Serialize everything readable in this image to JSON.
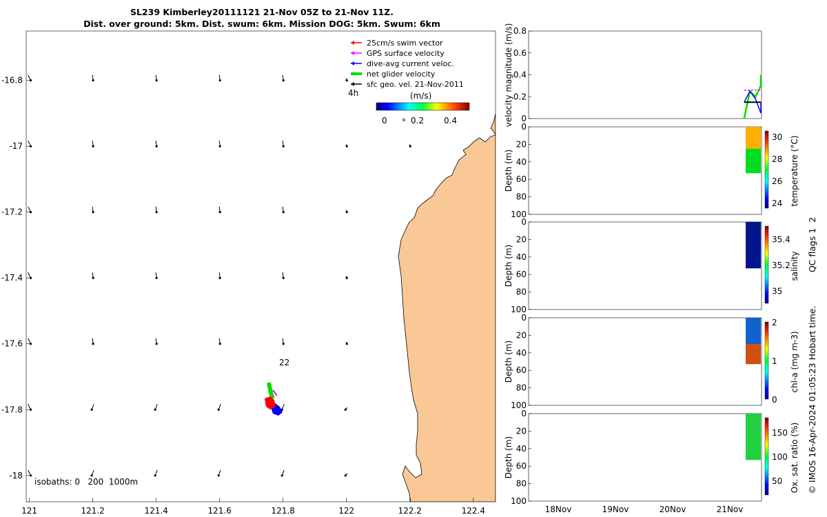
{
  "header": {
    "title_line1": "SL239 Kimberley20111121 21-Nov 05Z to 21-Nov 11Z.",
    "title_line2": "Dist. over ground: 5km. Dist. swum: 6km. Mission DOG: 5km. Swum: 6km"
  },
  "map": {
    "x_ticks": [
      "121",
      "121.2",
      "121.4",
      "121.6",
      "121.8",
      "122",
      "122.2",
      "122.4"
    ],
    "y_ticks": [
      "-16.8",
      "-17",
      "-17.2",
      "-17.4",
      "-17.6",
      "-17.8",
      "-18"
    ],
    "legend": [
      {
        "label": "25cm/s swim vector",
        "color": "#ff0000"
      },
      {
        "label": "GPS surface velocity",
        "color": "#ff00ff"
      },
      {
        "label": "dive-avg current veloc.",
        "color": "#0000ff"
      },
      {
        "label": "net glider velocity",
        "color": "#00dd00"
      },
      {
        "label": "sfc geo. vel. 21-Nov-2011",
        "color": "#000000"
      }
    ],
    "colorbar_title": "(m/s)",
    "colorbar_ticks": [
      "0",
      "0.2",
      "0.4"
    ],
    "label_4h": "4h",
    "label_22": "22",
    "isobaths": "isobaths: 0   200  1000m",
    "land_color": "#fac896"
  },
  "panels": {
    "velocity_ylabel": "velocity magnitude (m/s)",
    "velocity_yticks": [
      "0",
      "0.2",
      "0.4",
      "0.6",
      "0.8"
    ],
    "depth_ylabel": "Depth (m)",
    "depth_ticks": [
      "0",
      "20",
      "40",
      "60",
      "80",
      "100"
    ],
    "temp": {
      "label": "temperature (°C)",
      "ticks": [
        "30",
        "28",
        "26",
        "24"
      ]
    },
    "sal": {
      "label": "salinity",
      "ticks": [
        "35.4",
        "35.2",
        "35"
      ]
    },
    "chl": {
      "label": "chl-a (mg m-3)",
      "ticks": [
        "2",
        "1",
        "0"
      ]
    },
    "oxy": {
      "label": "Ox. sat. ratio (%)",
      "ticks": [
        "150",
        "100",
        "50"
      ]
    },
    "x_ticks": [
      "18Nov",
      "19Nov",
      "20Nov",
      "21Nov"
    ],
    "qc_label": "QC flags 1  2",
    "credit": "© IMOS 16-Apr-2024 01:05:23 Hobart time."
  },
  "chart_data": [
    {
      "type": "scatter",
      "title": "SL239 Kimberley20111121 21-Nov 05Z to 21-Nov 11Z.",
      "xlabel": "",
      "ylabel": "",
      "xlim": [
        120.99,
        122.47
      ],
      "ylim": [
        -18.08,
        -16.65
      ],
      "series": [
        {
          "name": "sfc geo. vel. 21-Nov-2011",
          "points": [
            [
              121.0,
              -16.8
            ],
            [
              121.2,
              -16.8
            ],
            [
              121.4,
              -16.8
            ],
            [
              121.6,
              -16.8
            ],
            [
              121.8,
              -16.8
            ],
            [
              122.0,
              -16.8
            ],
            [
              121.0,
              -17.0
            ],
            [
              121.2,
              -17.0
            ],
            [
              121.4,
              -17.0
            ],
            [
              121.6,
              -17.0
            ],
            [
              121.8,
              -17.0
            ],
            [
              122.0,
              -17.0
            ],
            [
              122.2,
              -17.0
            ],
            [
              121.0,
              -17.2
            ],
            [
              121.2,
              -17.2
            ],
            [
              121.4,
              -17.2
            ],
            [
              121.6,
              -17.2
            ],
            [
              121.8,
              -17.2
            ],
            [
              122.0,
              -17.2
            ],
            [
              121.0,
              -17.4
            ],
            [
              121.2,
              -17.4
            ],
            [
              121.4,
              -17.4
            ],
            [
              121.6,
              -17.4
            ],
            [
              121.8,
              -17.4
            ],
            [
              122.0,
              -17.4
            ],
            [
              121.0,
              -17.6
            ],
            [
              121.2,
              -17.6
            ],
            [
              121.4,
              -17.6
            ],
            [
              121.6,
              -17.6
            ],
            [
              121.8,
              -17.6
            ],
            [
              122.0,
              -17.6
            ],
            [
              121.0,
              -17.8
            ],
            [
              121.2,
              -17.8
            ],
            [
              121.4,
              -17.8
            ],
            [
              121.6,
              -17.8
            ],
            [
              121.8,
              -17.8
            ],
            [
              122.0,
              -17.8
            ],
            [
              121.0,
              -18.0
            ],
            [
              121.2,
              -18.0
            ],
            [
              121.4,
              -18.0
            ],
            [
              121.6,
              -18.0
            ],
            [
              121.8,
              -18.0
            ],
            [
              122.0,
              -18.0
            ]
          ]
        },
        {
          "name": "glider position",
          "points": [
            [
              121.78,
              -17.78
            ]
          ]
        }
      ]
    },
    {
      "type": "line",
      "title": "",
      "xlabel": "",
      "ylabel": "velocity magnitude (m/s)",
      "x": [
        "18Nov",
        "19Nov",
        "20Nov",
        "21Nov"
      ],
      "ylim": [
        0,
        0.8
      ],
      "series": [
        {
          "name": "net glider velocity",
          "x": [
            21.25,
            21.35,
            21.45,
            21.55,
            21.65,
            21.75
          ],
          "values": [
            0.0,
            0.25,
            0.2,
            0.3,
            0.35,
            0.4
          ]
        },
        {
          "name": "dive-avg current veloc.",
          "x": [
            21.25,
            21.35,
            21.45,
            21.55,
            21.65,
            21.75
          ],
          "values": [
            0.15,
            0.25,
            0.18,
            0.05,
            0.15,
            0.05
          ]
        },
        {
          "name": "GPS surface velocity",
          "x": [
            21.25,
            21.75
          ],
          "values": [
            0.26,
            0.26
          ]
        },
        {
          "name": "sfc geo. vel. 21-Nov-2011",
          "x": [
            21.25,
            21.75
          ],
          "values": [
            0.15,
            0.15
          ]
        }
      ]
    },
    {
      "type": "heatmap",
      "ylabel": "Depth (m)",
      "ylim": [
        100,
        0
      ],
      "colorbar": {
        "label": "temperature (°C)",
        "range": [
          23.5,
          30.5
        ]
      },
      "profiles": [
        {
          "depth": [
            0,
            25
          ],
          "value": 29.5
        },
        {
          "depth": [
            25,
            53
          ],
          "value": 27.5
        }
      ]
    },
    {
      "type": "heatmap",
      "ylabel": "Depth (m)",
      "ylim": [
        100,
        0
      ],
      "colorbar": {
        "label": "salinity",
        "range": [
          34.9,
          35.5
        ]
      },
      "profiles": [
        {
          "depth": [
            0,
            53
          ],
          "value": 34.9
        }
      ]
    },
    {
      "type": "heatmap",
      "ylabel": "Depth (m)",
      "ylim": [
        100,
        0
      ],
      "colorbar": {
        "label": "chl-a (mg m-3)",
        "range": [
          0,
          2
        ]
      },
      "profiles": [
        {
          "depth": [
            0,
            30
          ],
          "value": 0.3
        },
        {
          "depth": [
            30,
            53
          ],
          "value": 1.8
        }
      ]
    },
    {
      "type": "heatmap",
      "ylabel": "Depth (m)",
      "ylim": [
        100,
        0
      ],
      "colorbar": {
        "label": "Ox. sat. ratio (%)",
        "range": [
          20,
          180
        ]
      },
      "profiles": [
        {
          "depth": [
            0,
            53
          ],
          "value": 110
        }
      ]
    }
  ]
}
